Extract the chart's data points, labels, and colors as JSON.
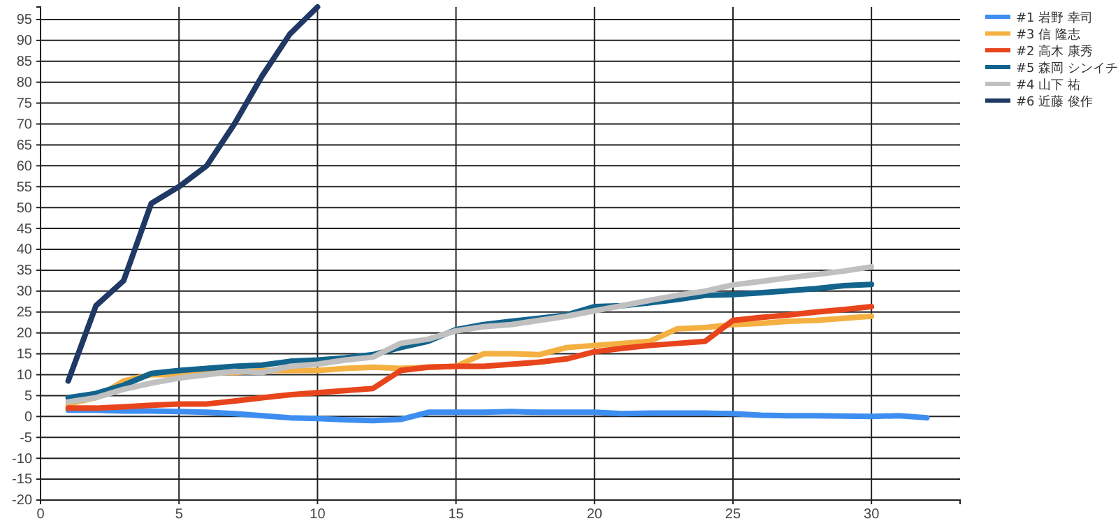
{
  "chart_data": {
    "type": "line",
    "xlim": [
      0,
      33.2
    ],
    "ylim": [
      -20,
      98
    ],
    "xticks": [
      0,
      5,
      10,
      15,
      20,
      25,
      30
    ],
    "yticks": [
      -20,
      -15,
      -10,
      -5,
      0,
      5,
      10,
      15,
      20,
      25,
      30,
      35,
      40,
      45,
      50,
      55,
      60,
      65,
      70,
      75,
      80,
      85,
      90,
      95
    ],
    "grid": true,
    "legend": "top right",
    "marker": "none",
    "line_style": "solid",
    "series": [
      {
        "name": "#1 岩野 幸司",
        "color": "#3d8ef0",
        "x": [
          1,
          2,
          3,
          4,
          5,
          6,
          7,
          8,
          9,
          10,
          11,
          12,
          13,
          14,
          15,
          16,
          17,
          18,
          19,
          20,
          21,
          22,
          23,
          24,
          25,
          26,
          27,
          28,
          29,
          30,
          31,
          32
        ],
        "values": [
          1.5,
          1.5,
          1.3,
          1.3,
          1.2,
          1,
          0.7,
          0.2,
          -0.3,
          -0.5,
          -0.8,
          -1,
          -0.7,
          1,
          1,
          1,
          1.2,
          1,
          1,
          1,
          0.7,
          0.8,
          0.8,
          0.8,
          0.7,
          0.3,
          0.2,
          0.2,
          0.1,
          0,
          0.2,
          -0.3
        ]
      },
      {
        "name": "#3 信 隆志",
        "color": "#f5b042",
        "x": [
          1,
          2,
          3,
          4,
          5,
          6,
          7,
          8,
          9,
          10,
          11,
          12,
          13,
          14,
          15,
          16,
          17,
          18,
          19,
          20,
          21,
          22,
          23,
          24,
          25,
          26,
          27,
          28,
          29,
          30
        ],
        "values": [
          3,
          4.5,
          8.5,
          10,
          10,
          10.5,
          10.5,
          11,
          11,
          11,
          11.5,
          11.8,
          11.5,
          11.8,
          12,
          15,
          15,
          14.8,
          16.5,
          17,
          17.5,
          18,
          21,
          21.3,
          22,
          22.3,
          22.8,
          23,
          23.5,
          24
        ]
      },
      {
        "name": "#2 高木 康秀",
        "color": "#e8451c",
        "x": [
          1,
          2,
          3,
          4,
          5,
          6,
          7,
          8,
          9,
          10,
          11,
          12,
          13,
          14,
          15,
          16,
          17,
          18,
          19,
          20,
          21,
          22,
          23,
          24,
          25,
          26,
          27,
          28,
          29,
          30
        ],
        "values": [
          2,
          2,
          2.3,
          2.7,
          3,
          3,
          3.7,
          4.5,
          5.2,
          5.7,
          6.2,
          6.7,
          11,
          11.8,
          12,
          12,
          12.5,
          13,
          13.8,
          15.5,
          16.3,
          17,
          17.5,
          18,
          23,
          23.7,
          24.3,
          25,
          25.6,
          26.3
        ]
      },
      {
        "name": "#5 森岡 シンイチ",
        "color": "#12648c",
        "x": [
          1,
          2,
          3,
          4,
          5,
          6,
          7,
          8,
          9,
          10,
          11,
          12,
          13,
          14,
          15,
          16,
          17,
          18,
          19,
          20,
          21,
          22,
          23,
          24,
          25,
          26,
          27,
          28,
          29,
          30
        ],
        "values": [
          4.5,
          5.5,
          7.5,
          10.3,
          11,
          11.5,
          12,
          12.3,
          13.2,
          13.5,
          14,
          14.8,
          16.5,
          18,
          20.8,
          22,
          22.8,
          23.5,
          24.3,
          26.3,
          26.5,
          27.2,
          28,
          29,
          29.2,
          29.6,
          30.1,
          30.6,
          31.3,
          31.6
        ]
      },
      {
        "name": "#4 山下 祐",
        "color": "#c0c0c0",
        "x": [
          1,
          2,
          3,
          4,
          5,
          6,
          7,
          8,
          9,
          10,
          11,
          12,
          13,
          14,
          15,
          16,
          17,
          18,
          19,
          20,
          21,
          22,
          23,
          24,
          25,
          26,
          27,
          28,
          29,
          30
        ],
        "values": [
          3.5,
          4.5,
          6.5,
          8,
          9.2,
          10,
          10.8,
          10.5,
          12,
          12.5,
          13.5,
          14.2,
          17.5,
          18.5,
          20.5,
          21.5,
          22,
          23,
          24,
          25.3,
          26.5,
          27.8,
          29,
          30,
          31.5,
          32.3,
          33.2,
          34,
          34.8,
          35.8
        ]
      },
      {
        "name": "#6 近藤 俊作",
        "color": "#1f3864",
        "x": [
          1,
          2,
          3,
          4,
          5,
          6,
          7,
          8,
          9,
          10
        ],
        "values": [
          8.5,
          26.5,
          32.5,
          51,
          55,
          60,
          70,
          81.5,
          91.5,
          98
        ]
      }
    ]
  }
}
